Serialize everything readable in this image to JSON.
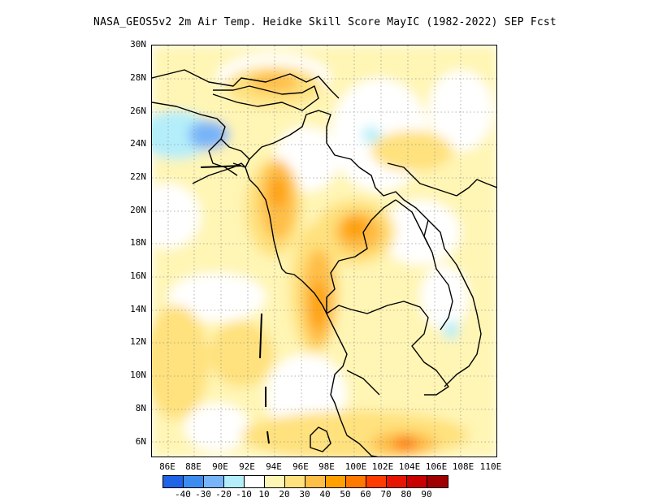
{
  "title": "NASA_GEOS5v2 2m Air Temp. Heidke Skill Score MayIC (1982-2022) SEP Fcst",
  "lat_ticks": [
    "30N",
    "28N",
    "26N",
    "24N",
    "22N",
    "20N",
    "18N",
    "16N",
    "14N",
    "12N",
    "10N",
    "8N",
    "6N"
  ],
  "lon_ticks": [
    "86E",
    "88E",
    "90E",
    "92E",
    "94E",
    "96E",
    "98E",
    "100E",
    "102E",
    "104E",
    "106E",
    "108E",
    "110E"
  ],
  "colorbar": {
    "colors": [
      "#1f63e6",
      "#3c8cf0",
      "#78b4f8",
      "#b4eefa",
      "#ffffff",
      "#fff5b4",
      "#ffe17d",
      "#ffbe46",
      "#ffa000",
      "#ff7800",
      "#ff3c00",
      "#e61400",
      "#c80000",
      "#a00000"
    ],
    "labels": [
      "-40",
      "-30",
      "-20",
      "-10",
      "10",
      "20",
      "30",
      "40",
      "50",
      "60",
      "70",
      "80",
      "90"
    ]
  }
}
